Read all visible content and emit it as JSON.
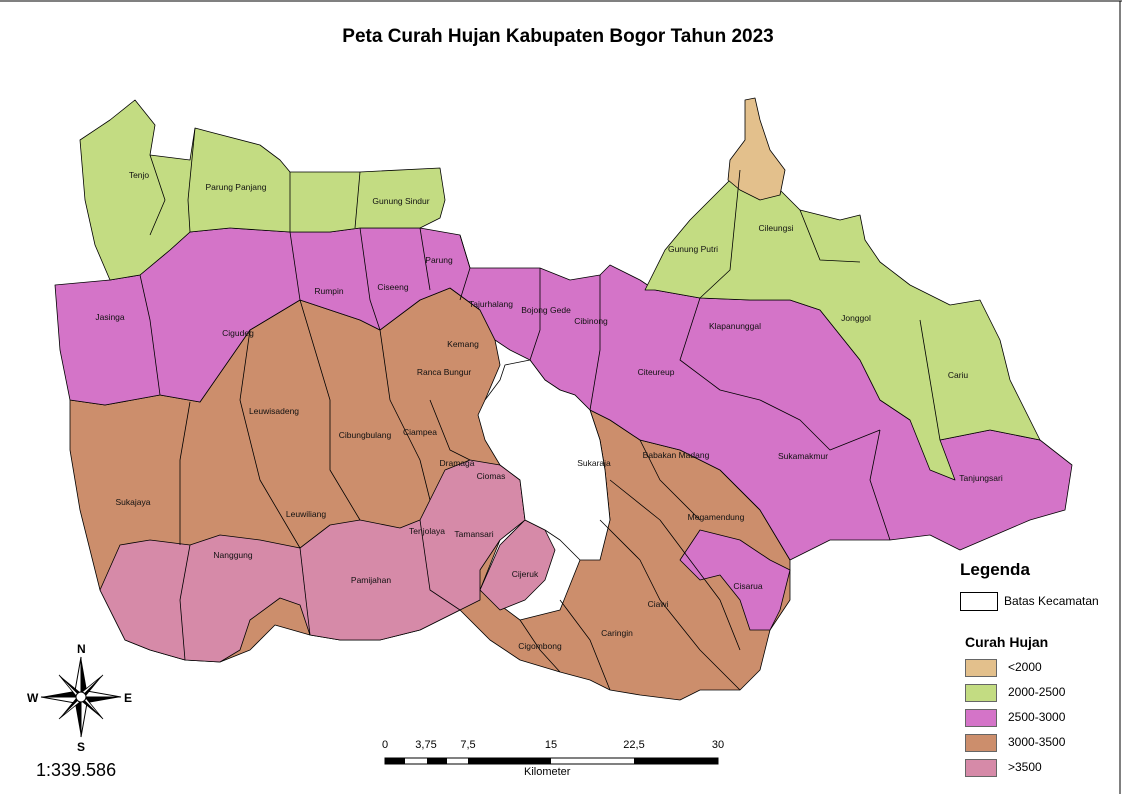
{
  "title": "Peta Curah Hujan Kabupaten Bogor Tahun 2023",
  "legend": {
    "heading": "Legenda",
    "boundary_label": "Batas Kecamatan",
    "rain_heading": "Curah Hujan",
    "classes": [
      {
        "label": "<2000",
        "color": "#e3c08c"
      },
      {
        "label": "2000-2500",
        "color": "#c3dc82"
      },
      {
        "label": "2500-3000",
        "color": "#d474c8"
      },
      {
        "label": "3000-3500",
        "color": "#cc8e6c"
      },
      {
        "label": ">3500",
        "color": "#d68aa8"
      }
    ]
  },
  "scale": {
    "ratio": "1:339.586",
    "ticks": [
      "0",
      "3,75",
      "7,5",
      "15",
      "22,5",
      "30"
    ],
    "unit": "Kilometer"
  },
  "compass": {
    "n": "N",
    "s": "S",
    "e": "E",
    "w": "W"
  },
  "districts": {
    "tenjo": "Tenjo",
    "parung_panjang": "Parung Panjang",
    "gunung_sindur": "Gunung Sindur",
    "rumpin": "Rumpin",
    "ciseeng": "Ciseeng",
    "parung": "Parung",
    "tajurhalang": "Tajurhalang",
    "bojong_gede": "Bojong Gede",
    "cibinong": "Cibinong",
    "gunung_putri": "Gunung Putri",
    "cileungsi": "Cileungsi",
    "tanjungsari_north": "Tanjungsari",
    "jasinga": "Jasinga",
    "cigudeg": "Cigudeg",
    "kemang": "Kemang",
    "ranca_bungur": "Ranca Bungur",
    "klapanunggal": "Klapanunggal",
    "jonggol": "Jonggol",
    "cariu": "Cariu",
    "citeureup": "Citeureup",
    "leuwisadeng": "Leuwisadeng",
    "cibungbulang": "Cibungbulang",
    "ciampea": "Ciampea",
    "dramaga": "Dramaga",
    "ciomas": "Ciomas",
    "sukaraja": "Sukaraja",
    "babakan_madang": "Babakan Madang",
    "sukamakmur": "Sukamakmur",
    "tanjungsari": "Tanjungsari",
    "sukajaya": "Sukajaya",
    "leuwiliang": "Leuwiliang",
    "tenjolaya": "Tenjolaya",
    "tamansari": "Tamansari",
    "megamendung": "Megamendung",
    "nanggung": "Nanggung",
    "pamijahan": "Pamijahan",
    "cijeruk": "Cijeruk",
    "cisarua": "Cisarua",
    "ciawi": "Ciawi",
    "caringin": "Caringin",
    "cigombong": "Cigombong"
  }
}
